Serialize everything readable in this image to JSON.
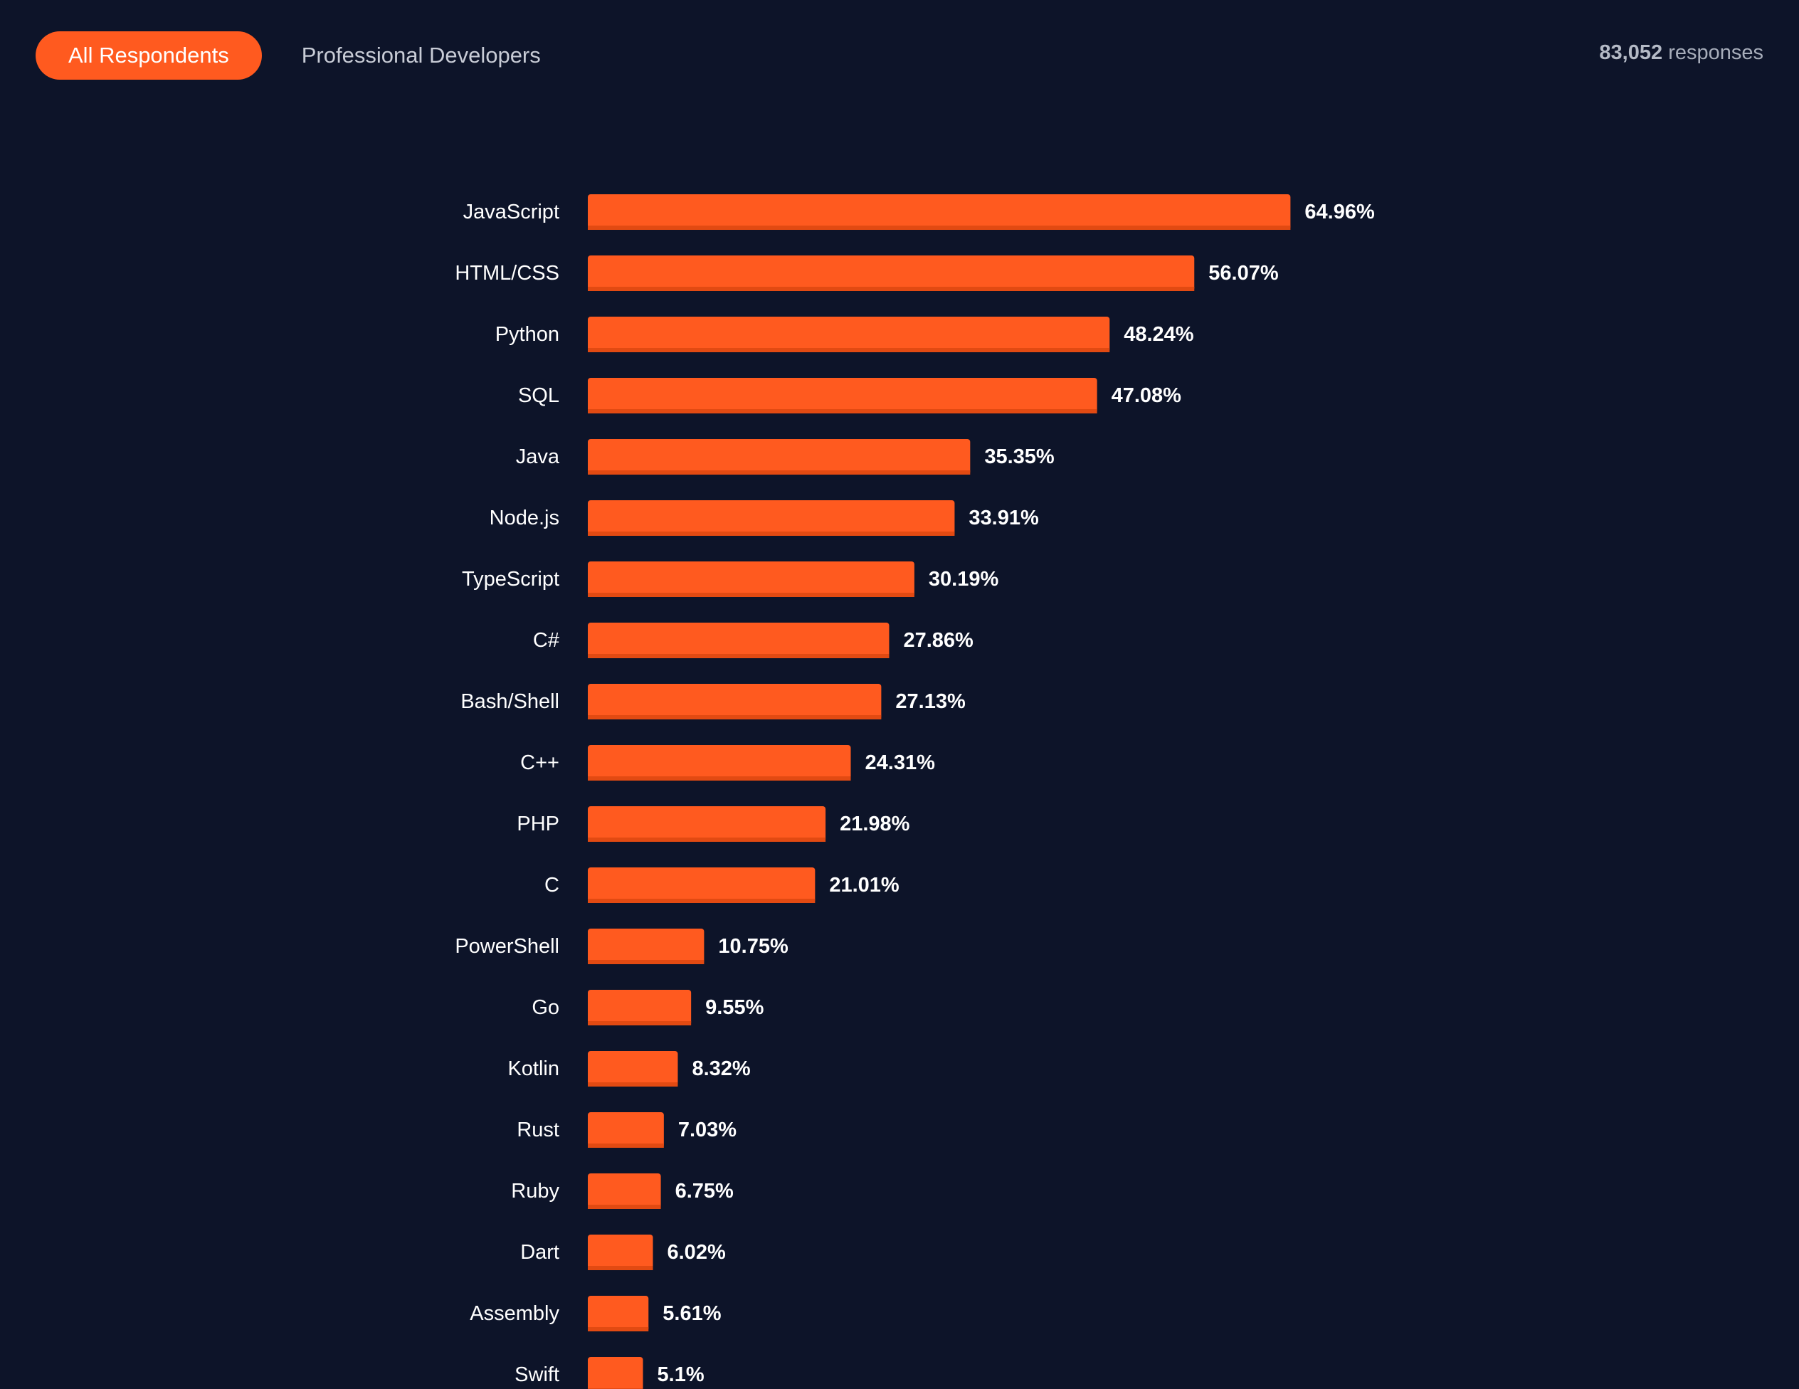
{
  "tabs": [
    {
      "label": "All Respondents",
      "active": true
    },
    {
      "label": "Professional Developers",
      "active": false
    }
  ],
  "responses": {
    "count": "83,052",
    "label": "responses"
  },
  "colors": {
    "background": "#0d1429",
    "accent": "#ff5a1f",
    "bar": "#ff5a1f",
    "text": "#ffffff"
  },
  "chart_data": {
    "type": "bar",
    "orientation": "horizontal",
    "categories": [
      "JavaScript",
      "HTML/CSS",
      "Python",
      "SQL",
      "Java",
      "Node.js",
      "TypeScript",
      "C#",
      "Bash/Shell",
      "C++",
      "PHP",
      "C",
      "PowerShell",
      "Go",
      "Kotlin",
      "Rust",
      "Ruby",
      "Dart",
      "Assembly",
      "Swift"
    ],
    "values": [
      64.96,
      56.07,
      48.24,
      47.08,
      35.35,
      33.91,
      30.19,
      27.86,
      27.13,
      24.31,
      21.98,
      21.01,
      10.75,
      9.55,
      8.32,
      7.03,
      6.75,
      6.02,
      5.61,
      5.1
    ],
    "value_labels": [
      "64.96%",
      "56.07%",
      "48.24%",
      "47.08%",
      "35.35%",
      "33.91%",
      "30.19%",
      "27.86%",
      "27.13%",
      "24.31%",
      "21.98%",
      "21.01%",
      "10.75%",
      "9.55%",
      "8.32%",
      "7.03%",
      "6.75%",
      "6.02%",
      "5.61%",
      "5.1%"
    ],
    "unit": "%",
    "grid": false,
    "legend": "none",
    "xlim": [
      0,
      100
    ]
  }
}
